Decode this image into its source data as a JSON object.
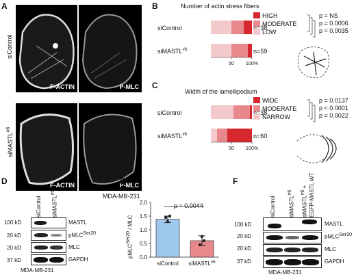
{
  "panels": {
    "A": "A",
    "B": "B",
    "C": "C",
    "D": "D",
    "E": "E",
    "F": "F"
  },
  "panelA": {
    "row1_label": "siControl",
    "row2_label": "siMASTL",
    "row2_sup": "#6",
    "tiles": [
      "F-ACTIN",
      "P-MLC",
      "F-ACTIN",
      "P-MLC"
    ],
    "cell_line": "MDA-MB-231"
  },
  "panelB": {
    "title": "Number of actin stress fibers",
    "legend": [
      "HIGH",
      "MODERATE",
      "LOW"
    ],
    "colors": [
      "#d7282f",
      "#e8888c",
      "#f4c9cb"
    ],
    "rows": [
      {
        "label": "siControl",
        "sup": "",
        "n": "n=38"
      },
      {
        "label": "siMASTL",
        "sup": "#6",
        "n": "n=59"
      }
    ],
    "pvals": [
      "p = NS",
      "p = 0.0006",
      "p = 0.0035"
    ],
    "ticks": [
      "50",
      "100%"
    ]
  },
  "panelC": {
    "title": "Width of the lamellipodium",
    "legend": [
      "WIDE",
      "MODERATE",
      "NARROW"
    ],
    "rows": [
      {
        "label": "siControl",
        "sup": "",
        "n": "n=38"
      },
      {
        "label": "siMASTL",
        "sup": "#6",
        "n": "n=60"
      }
    ],
    "pvals": [
      "p = 0.0137",
      "p < 0.0001",
      "p = 0.0022"
    ],
    "ticks": [
      "50",
      "100%"
    ]
  },
  "panelD": {
    "lanes": [
      "siControl",
      "siMASTL"
    ],
    "lane_sup": "#6",
    "markers": [
      "100 kD",
      "20 kD",
      "20 kD",
      "37 kD"
    ],
    "proteins": [
      "MASTL",
      "pMLC",
      "MLC",
      "GAPDH"
    ],
    "pmlc_sup": "Ser20",
    "cell_line": "MDA-MB-231"
  },
  "panelE": {
    "ylabel": "pMLC",
    "ylabel_sup": "Ser20",
    "ylabel_tail": " / MLC",
    "pval": "p = 0.0044",
    "categories": [
      "siControl",
      "siMASTL"
    ],
    "cat_sup": "#6",
    "colors": [
      "#9fc8ef",
      "#e8888c"
    ],
    "yticks": [
      "0.0",
      "0.5",
      "1.0",
      "1.5",
      "2.0"
    ]
  },
  "panelF": {
    "lanes": [
      "siControl",
      "siMASTL",
      "siMASTL"
    ],
    "lane_sup": "#6",
    "lane3_tail": " +",
    "lane3_line2": "EGFP-MASTL WT",
    "markers": [
      "100 kD",
      "20 kD",
      "20 kD",
      "37 kD"
    ],
    "proteins": [
      "MASTL",
      "pMLC",
      "MLC",
      "GAPDH"
    ],
    "pmlc_sup": "Ser20",
    "cell_line": "MDA-MB-231"
  },
  "chart_data": [
    {
      "type": "bar",
      "title": "Number of actin stress fibers",
      "categories": [
        "siControl",
        "siMASTL#6"
      ],
      "series": [
        {
          "name": "HIGH",
          "values": [
            20,
            10
          ]
        },
        {
          "name": "MODERATE",
          "values": [
            30,
            40
          ]
        },
        {
          "name": "LOW",
          "values": [
            50,
            50
          ]
        }
      ],
      "xlim": [
        0,
        100
      ]
    },
    {
      "type": "bar",
      "title": "Width of the lamellipodium",
      "categories": [
        "siControl",
        "siMASTL#6"
      ],
      "series": [
        {
          "name": "WIDE",
          "values": [
            5,
            60
          ]
        },
        {
          "name": "MODERATE",
          "values": [
            40,
            25
          ]
        },
        {
          "name": "NARROW",
          "values": [
            55,
            15
          ]
        }
      ],
      "xlim": [
        0,
        100
      ]
    },
    {
      "type": "bar",
      "categories": [
        "siControl",
        "siMASTL#6"
      ],
      "values": [
        1.38,
        0.6
      ],
      "points": [
        [
          1.45,
          1.3,
          1.5
        ],
        [
          0.45,
          0.75,
          0.6
        ]
      ],
      "errors": [
        0.12,
        0.18
      ],
      "ylabel": "pMLCSer20 / MLC",
      "ylim": [
        0,
        2.0
      ]
    }
  ]
}
